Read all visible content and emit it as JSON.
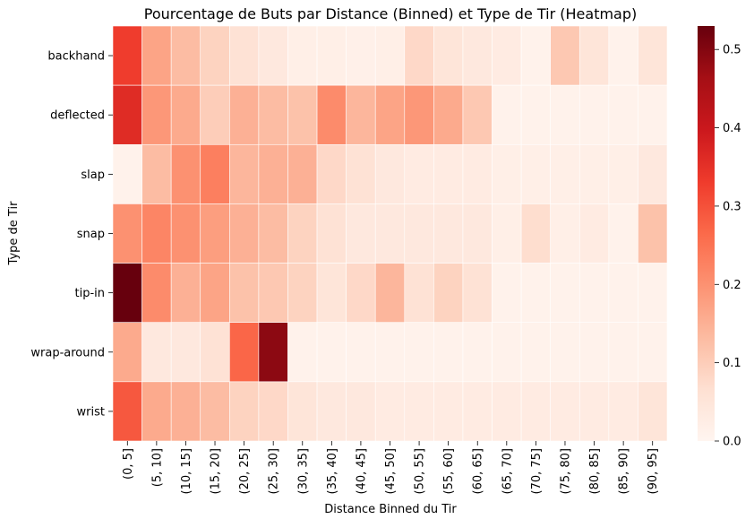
{
  "chart_data": {
    "type": "heatmap",
    "title": "Pourcentage de Buts par Distance (Binned) et Type de Tir (Heatmap)",
    "xlabel": "Distance Binned du Tir",
    "ylabel": "Type de Tir",
    "colormap": "Reds",
    "colorbar": {
      "min": 0.0,
      "max": 0.53,
      "ticks": [
        "0.0",
        "0.1",
        "0.2",
        "0.3",
        "0.4",
        "0.5"
      ]
    },
    "x_categories": [
      "(0, 5]",
      "(5, 10]",
      "(10, 15]",
      "(15, 20]",
      "(20, 25]",
      "(25, 30]",
      "(30, 35]",
      "(35, 40]",
      "(40, 45]",
      "(45, 50]",
      "(50, 55]",
      "(55, 60]",
      "(60, 65]",
      "(65, 70]",
      "(70, 75]",
      "(75, 80]",
      "(80, 85]",
      "(85, 90]",
      "(90, 95]"
    ],
    "y_categories": [
      "backhand",
      "deflected",
      "slap",
      "snap",
      "tip-in",
      "wrap-around",
      "wrist"
    ],
    "values": [
      [
        0.33,
        0.17,
        0.13,
        0.09,
        0.06,
        0.04,
        0.02,
        0.02,
        0.015,
        0.02,
        0.08,
        0.05,
        0.04,
        0.03,
        0.01,
        0.11,
        0.05,
        0.01,
        0.05
      ],
      [
        0.36,
        0.19,
        0.16,
        0.1,
        0.15,
        0.13,
        0.12,
        0.21,
        0.14,
        0.17,
        0.19,
        0.16,
        0.11,
        0.01,
        0.01,
        0.01,
        0.01,
        0.01,
        0.01
      ],
      [
        0.01,
        0.13,
        0.2,
        0.23,
        0.14,
        0.15,
        0.15,
        0.08,
        0.06,
        0.04,
        0.03,
        0.03,
        0.03,
        0.02,
        0.02,
        0.02,
        0.02,
        0.02,
        0.04
      ],
      [
        0.2,
        0.22,
        0.2,
        0.18,
        0.15,
        0.13,
        0.09,
        0.06,
        0.04,
        0.04,
        0.04,
        0.04,
        0.04,
        0.02,
        0.07,
        0.02,
        0.03,
        0.01,
        0.12
      ],
      [
        0.53,
        0.21,
        0.15,
        0.17,
        0.12,
        0.11,
        0.09,
        0.05,
        0.08,
        0.14,
        0.06,
        0.09,
        0.06,
        0.01,
        0.01,
        0.01,
        0.01,
        0.01,
        0.01
      ],
      [
        0.16,
        0.04,
        0.04,
        0.06,
        0.27,
        0.49,
        0.01,
        0.01,
        0.01,
        0.01,
        0.01,
        0.01,
        0.01,
        0.01,
        0.01,
        0.01,
        0.01,
        0.01,
        0.01
      ],
      [
        0.29,
        0.16,
        0.15,
        0.13,
        0.09,
        0.08,
        0.05,
        0.04,
        0.04,
        0.03,
        0.03,
        0.03,
        0.03,
        0.03,
        0.03,
        0.03,
        0.03,
        0.03,
        0.05
      ]
    ]
  }
}
